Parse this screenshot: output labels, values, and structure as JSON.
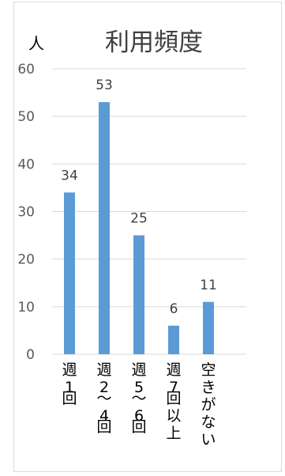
{
  "chart_data": {
    "type": "bar",
    "title": "利用頻度",
    "ylabel": "人",
    "xlabel": "",
    "categories": [
      "週1回",
      "週2～4回",
      "週5～6回",
      "週7回以上",
      "空きがない"
    ],
    "series": [
      {
        "values": [
          34,
          53,
          25,
          6,
          11
        ]
      }
    ],
    "ylim": [
      0,
      60
    ],
    "yticks": [
      0,
      10,
      20,
      30,
      40,
      50,
      60
    ],
    "grid": true,
    "legend": "none",
    "colors": {
      "bar": "#5b9bd5",
      "grid": "#d9d9d9"
    }
  }
}
